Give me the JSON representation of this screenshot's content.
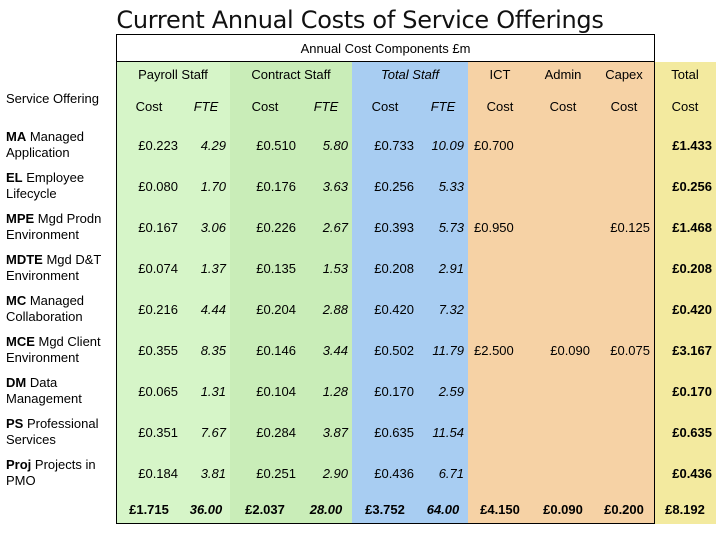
{
  "title": "Current Annual Costs of Service Offerings",
  "component_header": "Annual Cost Components £m",
  "row_header": "Service Offering",
  "groups": {
    "payroll": "Payroll Staff",
    "contract": "Contract Staff",
    "total": "Total Staff",
    "ict": "ICT",
    "admin": "Admin",
    "capex": "Capex",
    "grand": "Total"
  },
  "subheaders": [
    "Cost",
    "FTE",
    "Cost",
    "FTE",
    "Cost",
    "FTE",
    "Cost",
    "Cost",
    "Cost",
    "Cost"
  ],
  "rows": [
    {
      "abbr": "MA",
      "name": "Managed Application",
      "cells": [
        "£0.223",
        "4.29",
        "£0.510",
        "5.80",
        "£0.733",
        "10.09",
        "£0.700",
        "",
        "",
        "£1.433"
      ]
    },
    {
      "abbr": "EL",
      "name": "Employee Lifecycle",
      "cells": [
        "£0.080",
        "1.70",
        "£0.176",
        "3.63",
        "£0.256",
        "5.33",
        "",
        "",
        "",
        "£0.256"
      ]
    },
    {
      "abbr": "MPE",
      "name": "Mgd Prodn Environment",
      "cells": [
        "£0.167",
        "3.06",
        "£0.226",
        "2.67",
        "£0.393",
        "5.73",
        "£0.950",
        "",
        "£0.125",
        "£1.468"
      ]
    },
    {
      "abbr": "MDTE",
      "name": "Mgd D&T Environment",
      "cells": [
        "£0.074",
        "1.37",
        "£0.135",
        "1.53",
        "£0.208",
        "2.91",
        "",
        "",
        "",
        "£0.208"
      ]
    },
    {
      "abbr": "MC",
      "name": "Managed Collaboration",
      "cells": [
        "£0.216",
        "4.44",
        "£0.204",
        "2.88",
        "£0.420",
        "7.32",
        "",
        "",
        "",
        "£0.420"
      ]
    },
    {
      "abbr": "MCE",
      "name": "Mgd Client Environment",
      "cells": [
        "£0.355",
        "8.35",
        "£0.146",
        "3.44",
        "£0.502",
        "11.79",
        "£2.500",
        "£0.090",
        "£0.075",
        "£3.167"
      ]
    },
    {
      "abbr": "DM",
      "name": "Data Management",
      "cells": [
        "£0.065",
        "1.31",
        "£0.104",
        "1.28",
        "£0.170",
        "2.59",
        "",
        "",
        "",
        "£0.170"
      ]
    },
    {
      "abbr": "PS",
      "name": "Professional Services",
      "cells": [
        "£0.351",
        "7.67",
        "£0.284",
        "3.87",
        "£0.635",
        "11.54",
        "",
        "",
        "",
        "£0.635"
      ]
    },
    {
      "abbr": "Proj",
      "name": "Projects in PMO",
      "cells": [
        "£0.184",
        "3.81",
        "£0.251",
        "2.90",
        "£0.436",
        "6.71",
        "",
        "",
        "",
        "£0.436"
      ]
    }
  ],
  "totals": [
    "£1.715",
    "36.00",
    "£2.037",
    "28.00",
    "£3.752",
    "64.00",
    "£4.150",
    "£0.090",
    "£0.200",
    "£8.192"
  ]
}
